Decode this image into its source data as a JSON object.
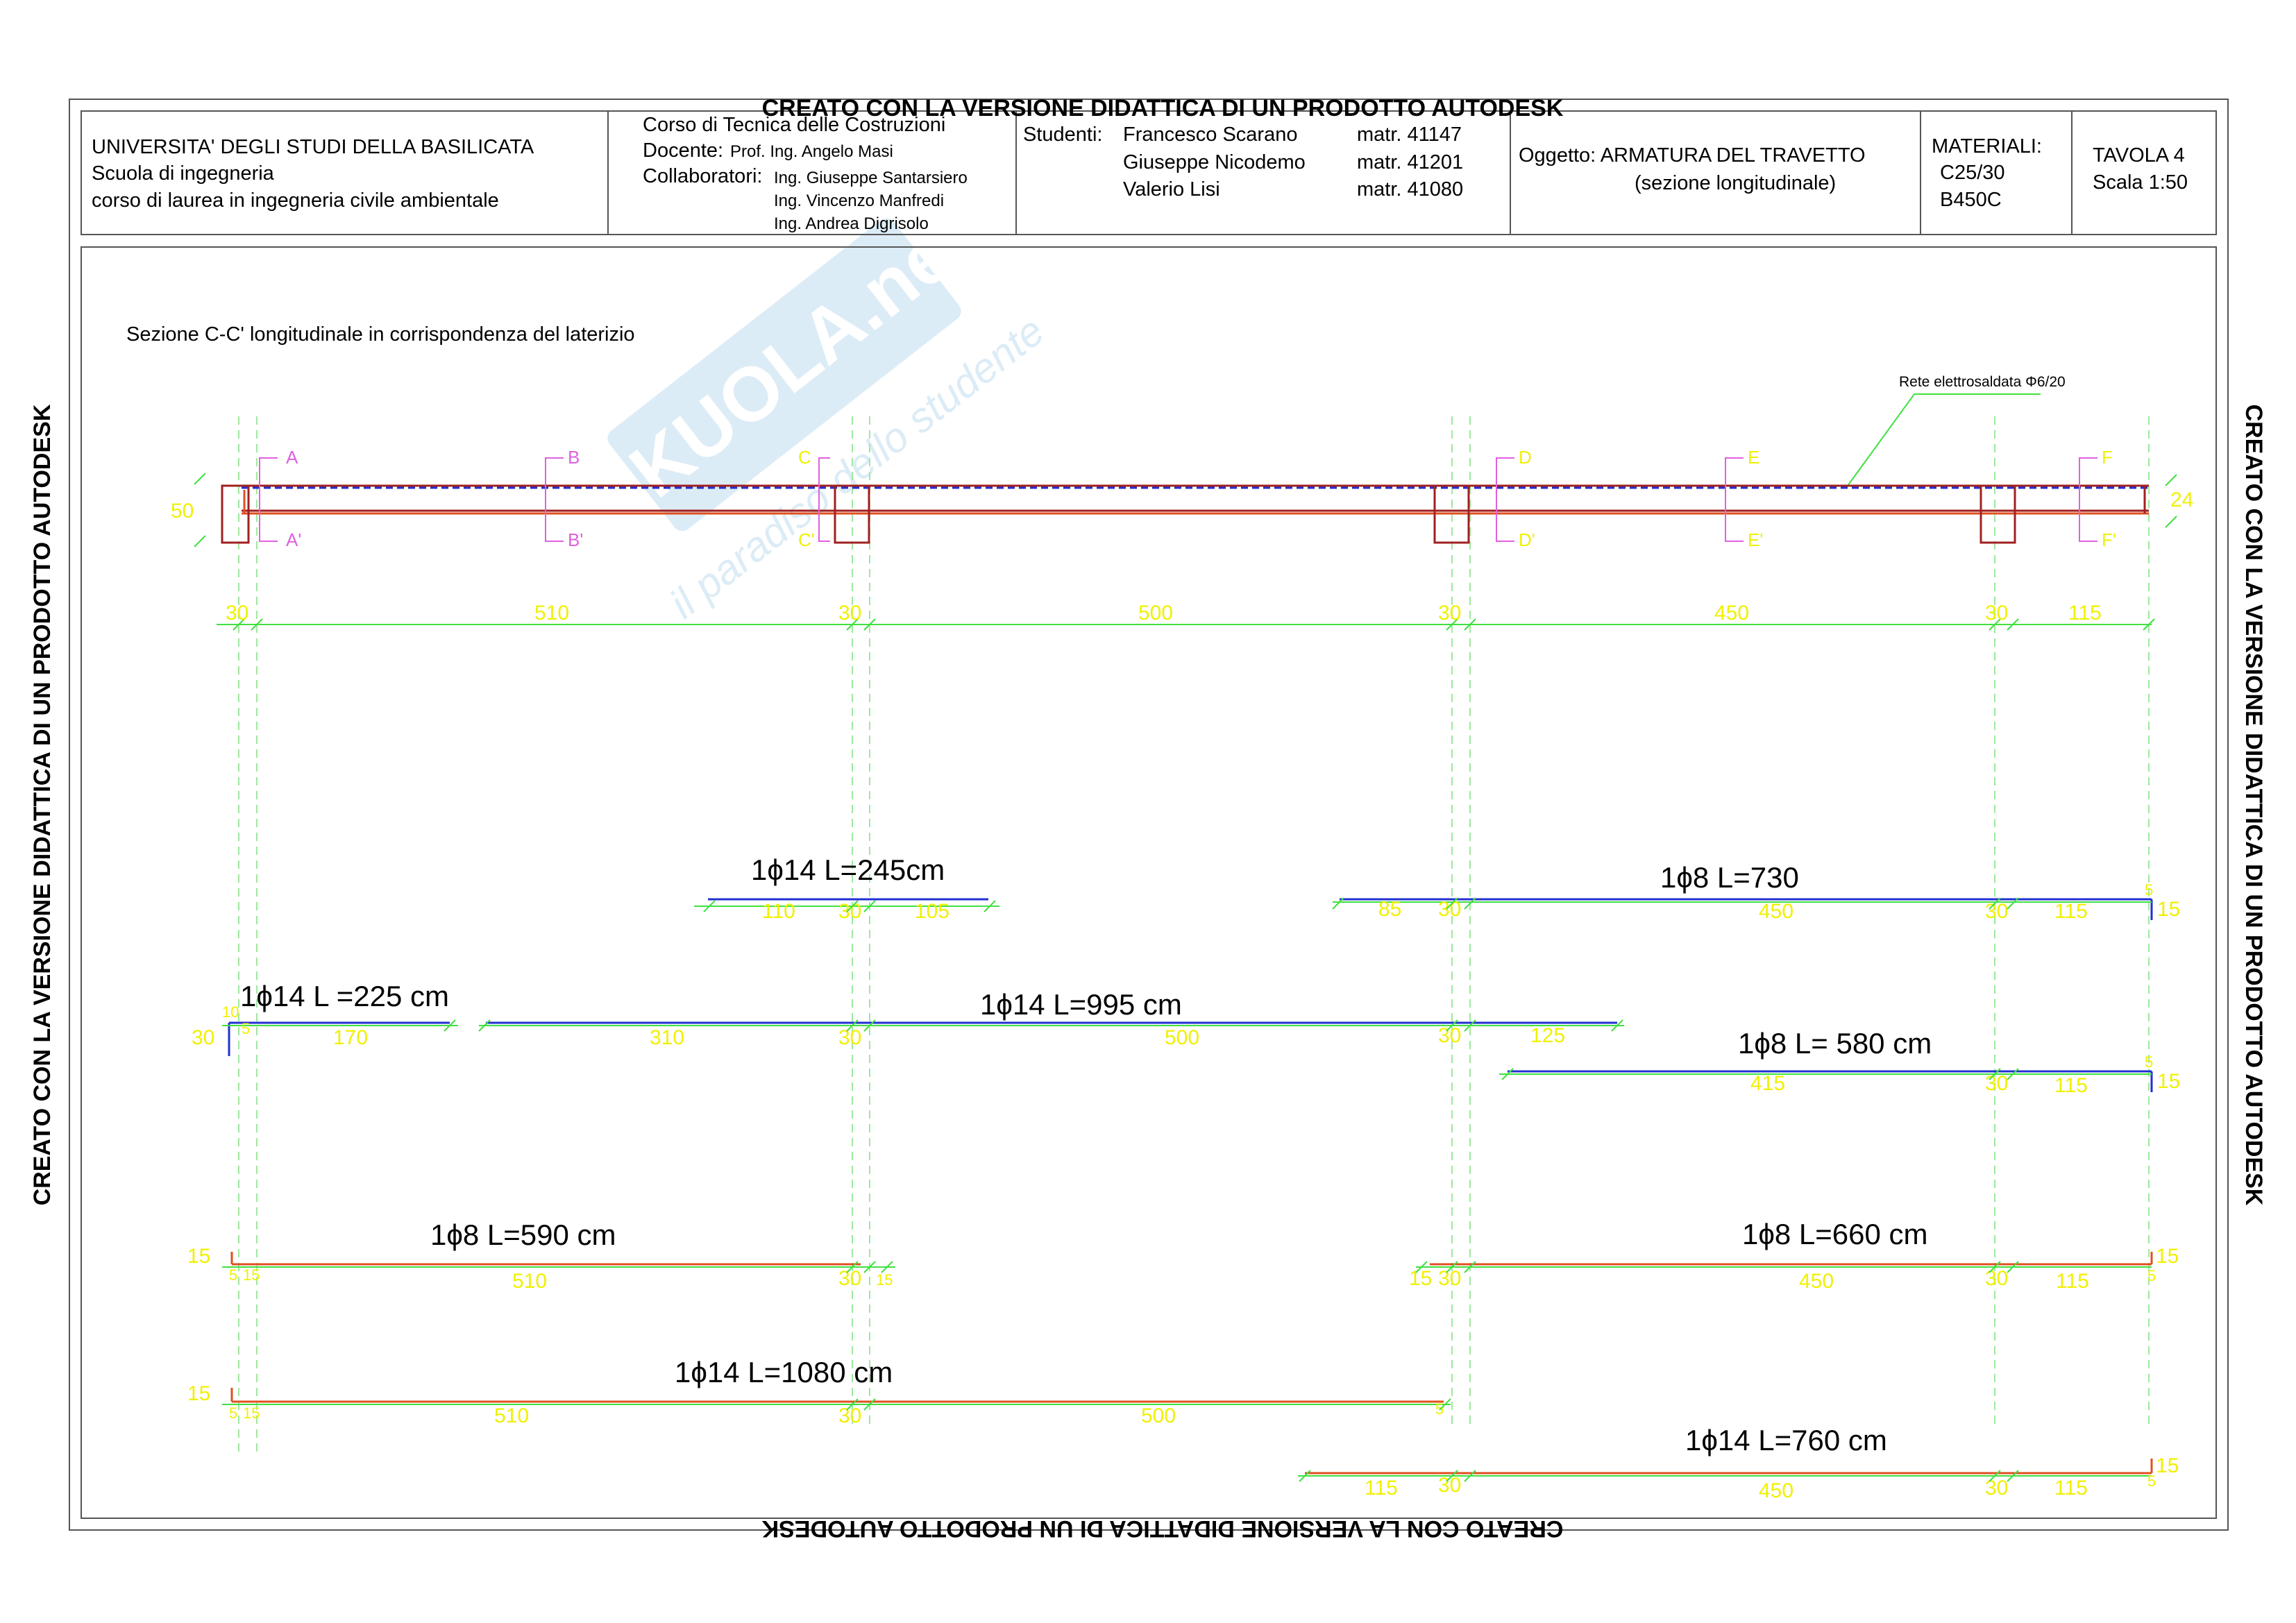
{
  "watermark": {
    "text": "CREATO CON LA VERSIONE DIDATTICA DI UN PRODOTTO AUTODESK",
    "logo_text": "SKUOLA.net",
    "logo_tagline": "il paradiso dello studente"
  },
  "title_block": {
    "university": "UNIVERSITA' DEGLI STUDI DELLA BASILICATA",
    "school": "Scuola di ingegneria",
    "degree": "corso di laurea in ingegneria civile ambientale",
    "course": "Corso di Tecnica delle Costruzioni",
    "docente_label": "Docente:",
    "docente": "Prof. Ing. Angelo Masi",
    "collaboratori_label": "Collaboratori:",
    "collaboratori": [
      "Ing. Giuseppe Santarsiero",
      "Ing. Vincenzo Manfredi",
      "Ing. Andrea Digrisolo"
    ],
    "students_label": "Studenti:",
    "students": [
      {
        "name": "Francesco Scarano",
        "matr": "matr. 41147"
      },
      {
        "name": "Giuseppe Nicodemo",
        "matr": "matr. 41201"
      },
      {
        "name": "Valerio Lisi",
        "matr": "matr. 41080"
      }
    ],
    "oggetto": "Oggetto: ARMATURA DEL TRAVETTO",
    "oggetto_sub": "(sezione longitudinale)",
    "materiali_label": "MATERIALI:",
    "materiali": [
      "C25/30",
      "B450C"
    ],
    "tavola": "TAVOLA 4",
    "scala": "Scala 1:50"
  },
  "drawing": {
    "section_title": "Sezione C-C' longitudinale in corrispondenza del laterizio",
    "mesh_label": "Rete elettrosaldata Φ6/20",
    "height_left": "50",
    "height_right": "24",
    "section_marks": [
      "A",
      "A'",
      "B",
      "B'",
      "C",
      "C'",
      "D",
      "D'",
      "E",
      "E'",
      "F",
      "F'"
    ],
    "spans": [
      "30",
      "510",
      "30",
      "500",
      "30",
      "450",
      "30",
      "115"
    ]
  },
  "bars": [
    {
      "label": "1ϕ14 L=245cm",
      "dims": [
        "110",
        "30",
        "105"
      ]
    },
    {
      "label": "1ϕ8  L=730",
      "dims": [
        "85",
        "30",
        "450",
        "30",
        "115"
      ],
      "hook": "15",
      "hook_small": "5"
    },
    {
      "label": "1ϕ14 L =225 cm",
      "dims": [
        "30",
        "10",
        "5",
        "170"
      ]
    },
    {
      "label": "1ϕ14 L=995 cm",
      "dims": [
        "310",
        "30",
        "500",
        "30",
        "125"
      ]
    },
    {
      "label": "1ϕ8 L= 580 cm",
      "dims": [
        "415",
        "30",
        "115"
      ],
      "hook": "15",
      "hook_small": "5"
    },
    {
      "label": "1ϕ8 L=590 cm",
      "dims": [
        "15",
        "5",
        "15",
        "510",
        "30",
        "15"
      ]
    },
    {
      "label": "1ϕ8 L=660 cm",
      "dims": [
        "15",
        "30",
        "450",
        "30",
        "115"
      ],
      "hook": "15",
      "hook_small": "5"
    },
    {
      "label": "1ϕ14 L=1080 cm",
      "dims": [
        "15",
        "5",
        "15",
        "510",
        "30",
        "500",
        "5"
      ]
    },
    {
      "label": "1ϕ14 L=760 cm",
      "dims": [
        "115",
        "30",
        "450",
        "30",
        "115"
      ],
      "hook": "15",
      "hook_small": "5"
    }
  ],
  "colors": {
    "green_dim": "#40e040",
    "yellow_text": "#f0f000",
    "blue_bar": "#2030d0",
    "red_bar": "#e05020",
    "magenta": "#e060e0",
    "dark_red": "#a02020"
  }
}
